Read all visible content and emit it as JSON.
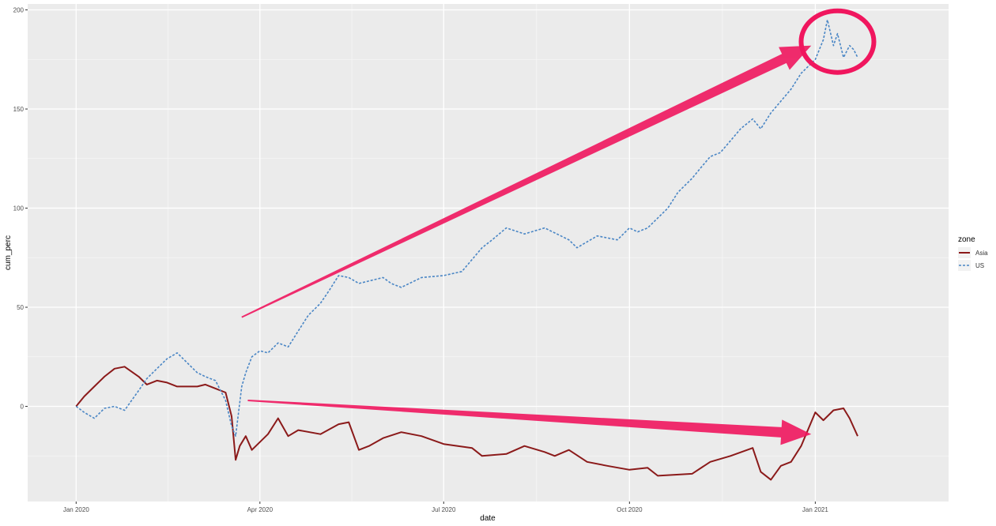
{
  "chart_data": {
    "type": "line",
    "xlabel": "date",
    "ylabel": "cum_perc",
    "x_ticks": [
      "Jan 2020",
      "Apr 2020",
      "Jul 2020",
      "Oct 2020",
      "Jan 2021"
    ],
    "x_tick_dates": [
      "2020-01-01",
      "2020-04-01",
      "2020-07-01",
      "2020-10-01",
      "2021-01-01"
    ],
    "y_ticks": [
      0,
      50,
      100,
      150,
      200
    ],
    "xlim": [
      "2019-12-08",
      "2021-03-08"
    ],
    "ylim": [
      -48,
      203
    ],
    "grid": true,
    "legend": {
      "title": "zone",
      "placement": "right"
    },
    "colors": {
      "Asia": "#8b1a1a",
      "US": "#4a86c5",
      "annotation": "#f0165e",
      "panel": "#ebebeb"
    },
    "annotations": [
      "arrow-up-toward-US-peak",
      "arrow-down-toward-Asia-end",
      "circle-around-US-peak"
    ],
    "series": [
      {
        "name": "Asia",
        "line_style": "solid",
        "points": [
          [
            "2020-01-01",
            0
          ],
          [
            "2020-01-05",
            5
          ],
          [
            "2020-01-10",
            10
          ],
          [
            "2020-01-15",
            15
          ],
          [
            "2020-01-20",
            19
          ],
          [
            "2020-01-25",
            20
          ],
          [
            "2020-02-01",
            15
          ],
          [
            "2020-02-05",
            11
          ],
          [
            "2020-02-10",
            13
          ],
          [
            "2020-02-15",
            12
          ],
          [
            "2020-02-20",
            10
          ],
          [
            "2020-03-01",
            10
          ],
          [
            "2020-03-05",
            11
          ],
          [
            "2020-03-10",
            9
          ],
          [
            "2020-03-15",
            7
          ],
          [
            "2020-03-18",
            -5
          ],
          [
            "2020-03-20",
            -27
          ],
          [
            "2020-03-22",
            -20
          ],
          [
            "2020-03-25",
            -15
          ],
          [
            "2020-03-28",
            -22
          ],
          [
            "2020-04-01",
            -18
          ],
          [
            "2020-04-05",
            -14
          ],
          [
            "2020-04-10",
            -6
          ],
          [
            "2020-04-15",
            -15
          ],
          [
            "2020-04-20",
            -12
          ],
          [
            "2020-05-01",
            -14
          ],
          [
            "2020-05-10",
            -9
          ],
          [
            "2020-05-15",
            -8
          ],
          [
            "2020-05-20",
            -22
          ],
          [
            "2020-05-25",
            -20
          ],
          [
            "2020-06-01",
            -16
          ],
          [
            "2020-06-10",
            -13
          ],
          [
            "2020-06-20",
            -15
          ],
          [
            "2020-07-01",
            -19
          ],
          [
            "2020-07-15",
            -21
          ],
          [
            "2020-07-20",
            -25
          ],
          [
            "2020-08-01",
            -24
          ],
          [
            "2020-08-10",
            -20
          ],
          [
            "2020-08-20",
            -23
          ],
          [
            "2020-08-25",
            -25
          ],
          [
            "2020-09-01",
            -22
          ],
          [
            "2020-09-10",
            -28
          ],
          [
            "2020-09-20",
            -30
          ],
          [
            "2020-10-01",
            -32
          ],
          [
            "2020-10-10",
            -31
          ],
          [
            "2020-10-15",
            -35
          ],
          [
            "2020-11-01",
            -34
          ],
          [
            "2020-11-10",
            -28
          ],
          [
            "2020-11-20",
            -25
          ],
          [
            "2020-12-01",
            -21
          ],
          [
            "2020-12-05",
            -33
          ],
          [
            "2020-12-10",
            -37
          ],
          [
            "2020-12-15",
            -30
          ],
          [
            "2020-12-20",
            -28
          ],
          [
            "2020-12-25",
            -20
          ],
          [
            "2021-01-01",
            -3
          ],
          [
            "2021-01-05",
            -7
          ],
          [
            "2021-01-10",
            -2
          ],
          [
            "2021-01-15",
            -1
          ],
          [
            "2021-01-18",
            -6
          ],
          [
            "2021-01-22",
            -15
          ]
        ]
      },
      {
        "name": "US",
        "line_style": "dashed",
        "points": [
          [
            "2020-01-01",
            0
          ],
          [
            "2020-01-05",
            -3
          ],
          [
            "2020-01-10",
            -6
          ],
          [
            "2020-01-15",
            -1
          ],
          [
            "2020-01-20",
            0
          ],
          [
            "2020-01-25",
            -2
          ],
          [
            "2020-02-01",
            8
          ],
          [
            "2020-02-05",
            14
          ],
          [
            "2020-02-10",
            19
          ],
          [
            "2020-02-15",
            24
          ],
          [
            "2020-02-20",
            27
          ],
          [
            "2020-02-25",
            22
          ],
          [
            "2020-03-01",
            17
          ],
          [
            "2020-03-05",
            15
          ],
          [
            "2020-03-10",
            13
          ],
          [
            "2020-03-15",
            3
          ],
          [
            "2020-03-18",
            -10
          ],
          [
            "2020-03-20",
            -15
          ],
          [
            "2020-03-23",
            10
          ],
          [
            "2020-03-25",
            17
          ],
          [
            "2020-03-28",
            25
          ],
          [
            "2020-04-01",
            28
          ],
          [
            "2020-04-05",
            27
          ],
          [
            "2020-04-10",
            32
          ],
          [
            "2020-04-15",
            30
          ],
          [
            "2020-04-20",
            38
          ],
          [
            "2020-04-25",
            46
          ],
          [
            "2020-05-01",
            52
          ],
          [
            "2020-05-05",
            58
          ],
          [
            "2020-05-10",
            66
          ],
          [
            "2020-05-15",
            65
          ],
          [
            "2020-05-20",
            62
          ],
          [
            "2020-06-01",
            65
          ],
          [
            "2020-06-05",
            62
          ],
          [
            "2020-06-10",
            60
          ],
          [
            "2020-06-20",
            65
          ],
          [
            "2020-07-01",
            66
          ],
          [
            "2020-07-10",
            68
          ],
          [
            "2020-07-20",
            80
          ],
          [
            "2020-07-25",
            84
          ],
          [
            "2020-08-01",
            90
          ],
          [
            "2020-08-10",
            87
          ],
          [
            "2020-08-20",
            90
          ],
          [
            "2020-09-01",
            84
          ],
          [
            "2020-09-05",
            80
          ],
          [
            "2020-09-15",
            86
          ],
          [
            "2020-09-25",
            84
          ],
          [
            "2020-10-01",
            90
          ],
          [
            "2020-10-05",
            88
          ],
          [
            "2020-10-10",
            90
          ],
          [
            "2020-10-20",
            100
          ],
          [
            "2020-10-25",
            108
          ],
          [
            "2020-11-01",
            115
          ],
          [
            "2020-11-05",
            120
          ],
          [
            "2020-11-10",
            126
          ],
          [
            "2020-11-15",
            128
          ],
          [
            "2020-11-20",
            134
          ],
          [
            "2020-11-25",
            140
          ],
          [
            "2020-12-01",
            145
          ],
          [
            "2020-12-05",
            140
          ],
          [
            "2020-12-10",
            148
          ],
          [
            "2020-12-15",
            154
          ],
          [
            "2020-12-20",
            160
          ],
          [
            "2020-12-25",
            168
          ],
          [
            "2021-01-01",
            175
          ],
          [
            "2021-01-05",
            185
          ],
          [
            "2021-01-07",
            195
          ],
          [
            "2021-01-10",
            182
          ],
          [
            "2021-01-12",
            188
          ],
          [
            "2021-01-15",
            176
          ],
          [
            "2021-01-18",
            182
          ],
          [
            "2021-01-20",
            180
          ],
          [
            "2021-01-22",
            176
          ]
        ]
      }
    ]
  }
}
